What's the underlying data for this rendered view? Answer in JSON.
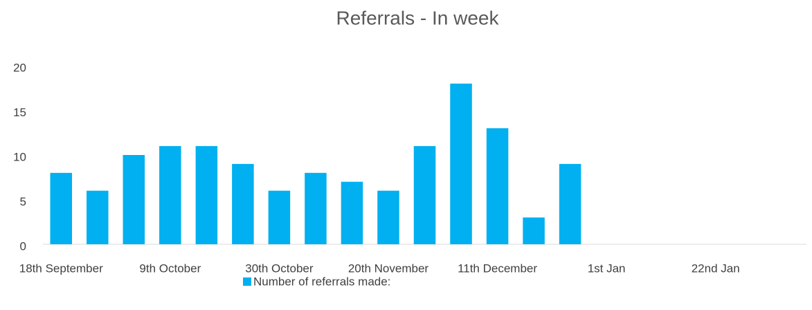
{
  "chart_data": {
    "type": "bar",
    "title": "Referrals - In week",
    "categories": [
      "18th September",
      null,
      null,
      "9th October",
      null,
      null,
      "30th October",
      null,
      null,
      "20th November",
      null,
      null,
      "11th December",
      null,
      null,
      "1st Jan",
      null,
      null,
      "22nd Jan",
      null,
      null
    ],
    "series": [
      {
        "name": "Number of referrals made:",
        "color": "#00b0f0",
        "values": [
          8,
          6,
          10,
          11,
          11,
          9,
          6,
          8,
          7,
          6,
          11,
          18,
          13,
          3,
          9,
          null,
          null,
          null,
          null,
          null,
          null
        ]
      }
    ],
    "ylim": [
      0,
      20
    ],
    "yticks": [
      0,
      5,
      10,
      15,
      20
    ],
    "grid": false,
    "legend": "bottom"
  }
}
